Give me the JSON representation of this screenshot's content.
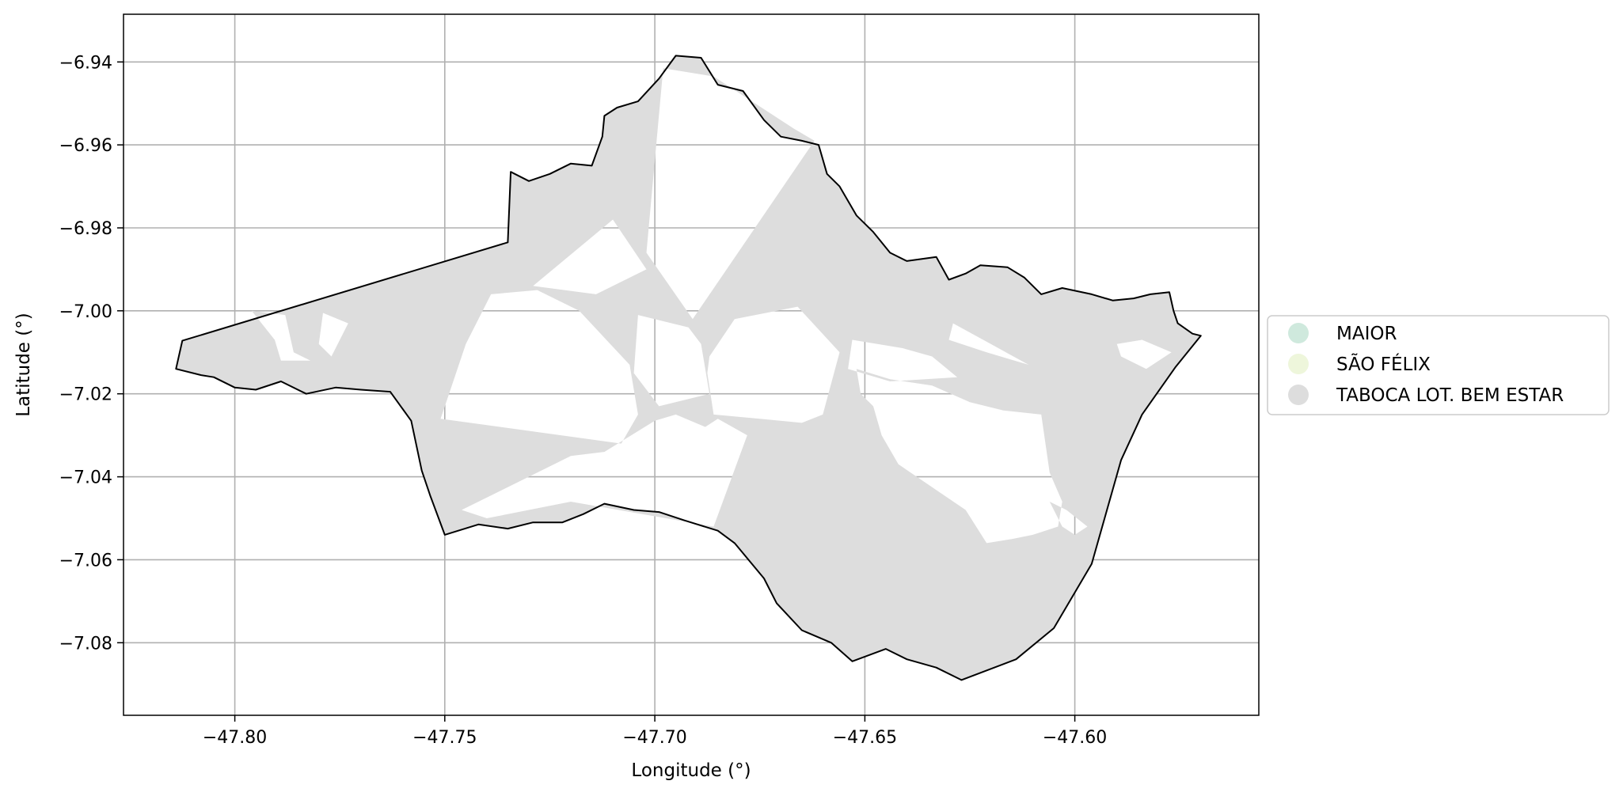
{
  "chart_data": {
    "type": "map",
    "xlabel": "Longitude (°)",
    "ylabel": "Latitude (°)",
    "xlim": [
      -47.8265,
      -47.5562
    ],
    "ylim": [
      -7.0975,
      -6.9285
    ],
    "x_ticks": [
      -47.8,
      -47.75,
      -47.7,
      -47.65,
      -47.6
    ],
    "x_tick_labels": [
      "−47.80",
      "−47.75",
      "−47.70",
      "−47.65",
      "−47.60"
    ],
    "y_ticks": [
      -6.94,
      -6.96,
      -6.98,
      -7.0,
      -7.02,
      -7.04,
      -7.06,
      -7.08
    ],
    "y_tick_labels": [
      "−6.94",
      "−6.96",
      "−6.98",
      "−7.00",
      "−7.02",
      "−7.04",
      "−7.06",
      "−7.08"
    ],
    "grid": true,
    "legend_placement": "center-right, outside axes",
    "legend": [
      {
        "label": "MAIOR",
        "color": "#cfe9dd"
      },
      {
        "label": "SÃO FÉLIX",
        "color": "#eef6db"
      },
      {
        "label": "TABOCA LOT. BEM ESTAR",
        "color": "#dddddd"
      }
    ],
    "boundary_color": "#000000",
    "fill_color": "#dddddd",
    "boundary": [
      [
        -47.8125,
        -7.0072
      ],
      [
        -47.735,
        -6.9835
      ],
      [
        -47.7343,
        -6.9665
      ],
      [
        -47.73,
        -6.9687
      ],
      [
        -47.725,
        -6.967
      ],
      [
        -47.72,
        -6.9645
      ],
      [
        -47.715,
        -6.965
      ],
      [
        -47.7125,
        -6.958
      ],
      [
        -47.712,
        -6.953
      ],
      [
        -47.709,
        -6.951
      ],
      [
        -47.704,
        -6.9495
      ],
      [
        -47.699,
        -6.944
      ],
      [
        -47.695,
        -6.9385
      ],
      [
        -47.689,
        -6.939
      ],
      [
        -47.685,
        -6.9455
      ],
      [
        -47.679,
        -6.947
      ],
      [
        -47.674,
        -6.954
      ],
      [
        -47.67,
        -6.958
      ],
      [
        -47.665,
        -6.959
      ],
      [
        -47.661,
        -6.96
      ],
      [
        -47.659,
        -6.967
      ],
      [
        -47.656,
        -6.97
      ],
      [
        -47.652,
        -6.977
      ],
      [
        -47.648,
        -6.981
      ],
      [
        -47.644,
        -6.986
      ],
      [
        -47.64,
        -6.988
      ],
      [
        -47.633,
        -6.987
      ],
      [
        -47.63,
        -6.9925
      ],
      [
        -47.626,
        -6.991
      ],
      [
        -47.6225,
        -6.989
      ],
      [
        -47.616,
        -6.9895
      ],
      [
        -47.612,
        -6.992
      ],
      [
        -47.608,
        -6.996
      ],
      [
        -47.603,
        -6.9945
      ],
      [
        -47.596,
        -6.996
      ],
      [
        -47.591,
        -6.9975
      ],
      [
        -47.586,
        -6.997
      ],
      [
        -47.582,
        -6.996
      ],
      [
        -47.5775,
        -6.9955
      ],
      [
        -47.5765,
        -7.0
      ],
      [
        -47.5755,
        -7.003
      ],
      [
        -47.572,
        -7.0055
      ],
      [
        -47.57,
        -7.006
      ],
      [
        -47.576,
        -7.0135
      ],
      [
        -47.584,
        -7.025
      ],
      [
        -47.589,
        -7.036
      ],
      [
        -47.596,
        -7.061
      ],
      [
        -47.605,
        -7.0765
      ],
      [
        -47.614,
        -7.084
      ],
      [
        -47.627,
        -7.089
      ],
      [
        -47.633,
        -7.086
      ],
      [
        -47.64,
        -7.084
      ],
      [
        -47.645,
        -7.0815
      ],
      [
        -47.653,
        -7.0845
      ],
      [
        -47.658,
        -7.08
      ],
      [
        -47.665,
        -7.077
      ],
      [
        -47.671,
        -7.0705
      ],
      [
        -47.674,
        -7.0645
      ],
      [
        -47.681,
        -7.056
      ],
      [
        -47.685,
        -7.053
      ],
      [
        -47.693,
        -7.0505
      ],
      [
        -47.699,
        -7.0485
      ],
      [
        -47.705,
        -7.048
      ],
      [
        -47.712,
        -7.0465
      ],
      [
        -47.717,
        -7.049
      ],
      [
        -47.722,
        -7.051
      ],
      [
        -47.729,
        -7.051
      ],
      [
        -47.735,
        -7.0525
      ],
      [
        -47.742,
        -7.0515
      ],
      [
        -47.75,
        -7.054
      ],
      [
        -47.7535,
        -7.0445
      ],
      [
        -47.7555,
        -7.0385
      ],
      [
        -47.758,
        -7.0265
      ],
      [
        -47.763,
        -7.0195
      ],
      [
        -47.77,
        -7.019
      ],
      [
        -47.776,
        -7.0185
      ],
      [
        -47.783,
        -7.02
      ],
      [
        -47.789,
        -7.017
      ],
      [
        -47.795,
        -7.019
      ],
      [
        -47.8,
        -7.0185
      ],
      [
        -47.805,
        -7.016
      ],
      [
        -47.808,
        -7.0155
      ],
      [
        -47.814,
        -7.014
      ]
    ],
    "holes": [
      [
        [
          -47.796,
          -7.0
        ],
        [
          -47.788,
          -7.001
        ],
        [
          -47.786,
          -7.01
        ],
        [
          -47.782,
          -7.012
        ],
        [
          -47.789,
          -7.012
        ],
        [
          -47.7905,
          -7.007
        ]
      ],
      [
        [
          -47.779,
          -7.0005
        ],
        [
          -47.773,
          -7.003
        ],
        [
          -47.777,
          -7.011
        ],
        [
          -47.78,
          -7.008
        ]
      ],
      [
        [
          -47.698,
          -6.9415
        ],
        [
          -47.686,
          -6.9435
        ],
        [
          -47.667,
          -6.956
        ],
        [
          -47.662,
          -6.959
        ],
        [
          -47.691,
          -7.002
        ],
        [
          -47.702,
          -6.986
        ]
      ],
      [
        [
          -47.729,
          -6.994
        ],
        [
          -47.714,
          -6.996
        ],
        [
          -47.702,
          -6.99
        ],
        [
          -47.71,
          -6.978
        ]
      ],
      [
        [
          -47.745,
          -7.008
        ],
        [
          -47.749,
          -7.02
        ],
        [
          -47.751,
          -7.026
        ],
        [
          -47.708,
          -7.032
        ],
        [
          -47.704,
          -7.025
        ],
        [
          -47.706,
          -7.013
        ],
        [
          -47.718,
          -7.0
        ],
        [
          -47.728,
          -6.995
        ],
        [
          -47.739,
          -6.996
        ]
      ],
      [
        [
          -47.704,
          -7.001
        ],
        [
          -47.692,
          -7.004
        ],
        [
          -47.689,
          -7.008
        ],
        [
          -47.687,
          -7.02
        ],
        [
          -47.699,
          -7.023
        ],
        [
          -47.705,
          -7.015
        ]
      ],
      [
        [
          -47.746,
          -7.048
        ],
        [
          -47.72,
          -7.035
        ],
        [
          -47.712,
          -7.034
        ],
        [
          -47.7,
          -7.0265
        ],
        [
          -47.695,
          -7.025
        ],
        [
          -47.688,
          -7.028
        ],
        [
          -47.685,
          -7.026
        ],
        [
          -47.678,
          -7.03
        ],
        [
          -47.686,
          -7.052
        ],
        [
          -47.72,
          -7.046
        ],
        [
          -47.74,
          -7.05
        ]
      ],
      [
        [
          -47.687,
          -7.011
        ],
        [
          -47.681,
          -7.002
        ],
        [
          -47.666,
          -6.999
        ],
        [
          -47.656,
          -7.01
        ],
        [
          -47.66,
          -7.025
        ],
        [
          -47.665,
          -7.027
        ],
        [
          -47.675,
          -7.026
        ],
        [
          -47.686,
          -7.025
        ],
        [
          -47.6875,
          -7.015
        ]
      ],
      [
        [
          -47.652,
          -7.014
        ],
        [
          -47.651,
          -7.02
        ],
        [
          -47.648,
          -7.023
        ],
        [
          -47.646,
          -7.03
        ],
        [
          -47.642,
          -7.037
        ],
        [
          -47.626,
          -7.048
        ],
        [
          -47.621,
          -7.056
        ],
        [
          -47.615,
          -7.055
        ],
        [
          -47.61,
          -7.054
        ],
        [
          -47.604,
          -7.052
        ],
        [
          -47.603,
          -7.046
        ],
        [
          -47.606,
          -7.039
        ],
        [
          -47.608,
          -7.025
        ],
        [
          -47.617,
          -7.024
        ],
        [
          -47.625,
          -7.022
        ],
        [
          -47.634,
          -7.018
        ],
        [
          -47.644,
          -7.0165
        ]
      ],
      [
        [
          -47.653,
          -7.007
        ],
        [
          -47.641,
          -7.009
        ],
        [
          -47.634,
          -7.011
        ],
        [
          -47.628,
          -7.016
        ],
        [
          -47.644,
          -7.017
        ],
        [
          -47.654,
          -7.014
        ]
      ],
      [
        [
          -47.629,
          -7.003
        ],
        [
          -47.63,
          -7.007
        ],
        [
          -47.621,
          -7.01
        ],
        [
          -47.611,
          -7.013
        ],
        [
          -47.62,
          -7.008
        ]
      ],
      [
        [
          -47.59,
          -7.008
        ],
        [
          -47.584,
          -7.007
        ],
        [
          -47.577,
          -7.01
        ],
        [
          -47.583,
          -7.014
        ],
        [
          -47.589,
          -7.011
        ]
      ],
      [
        [
          -47.606,
          -7.046
        ],
        [
          -47.602,
          -7.048
        ],
        [
          -47.597,
          -7.052
        ],
        [
          -47.6,
          -7.054
        ],
        [
          -47.603,
          -7.052
        ]
      ]
    ]
  }
}
